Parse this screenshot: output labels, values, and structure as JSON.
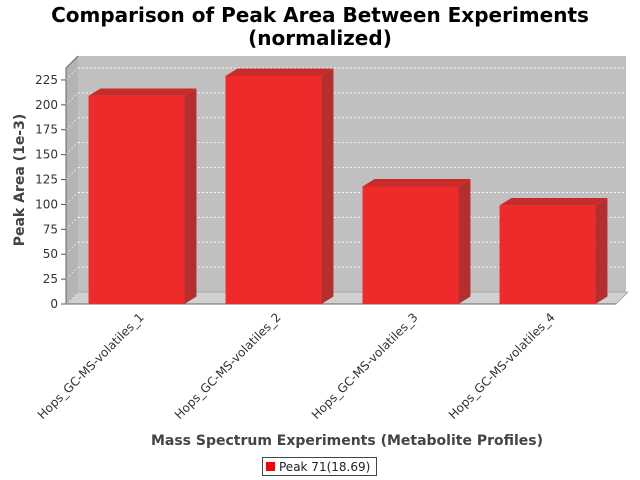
{
  "chart_data": {
    "type": "bar",
    "title": "Comparison of Peak Area Between Experiments",
    "subtitle": "(normalized)",
    "xlabel": "Mass Spectrum Experiments (Metabolite Profiles)",
    "ylabel": "Peak Area (1e-3)",
    "categories": [
      "Hops_GC-MS-volatiles_1",
      "Hops_GC-MS-volatiles_2",
      "Hops_GC-MS-volatiles_3",
      "Hops_GC-MS-volatiles_4"
    ],
    "series": [
      {
        "name": "Peak 71(18.69)",
        "values": [
          209,
          229,
          118,
          99
        ],
        "color": "#ee2a2a"
      }
    ],
    "ylim": [
      0,
      237
    ],
    "yticks": [
      "0",
      "25",
      "50",
      "75",
      "100",
      "125",
      "150",
      "175",
      "200",
      "225"
    ],
    "grid": true,
    "legend_position": "bottom",
    "plot_background": "#c0c0c0",
    "floor_color": "#d0d0d0"
  }
}
